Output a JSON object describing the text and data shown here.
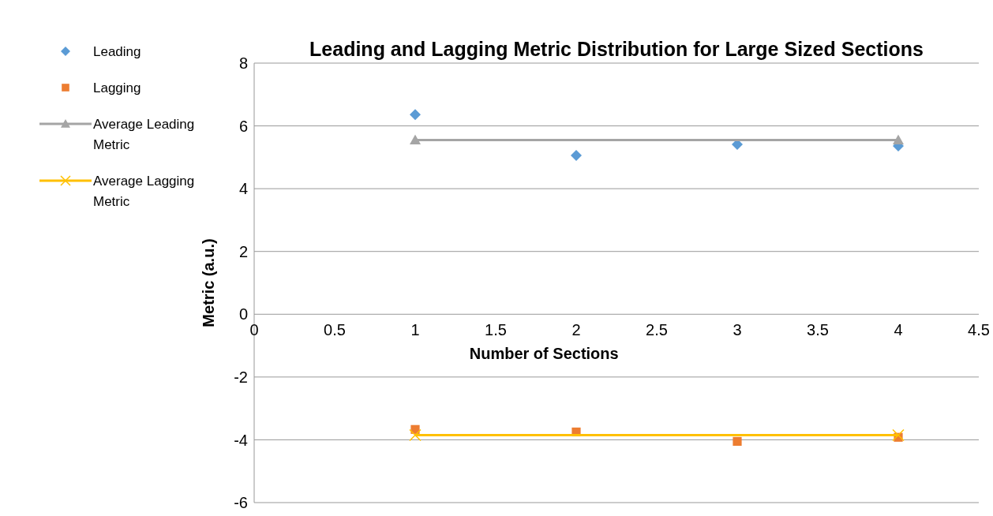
{
  "chart_data": {
    "type": "scatter",
    "title": "Leading and Lagging Metric Distribution for Large Sized Sections",
    "xlabel": "Number of Sections",
    "ylabel": "Metric (a.u.)",
    "xlim": [
      0,
      4.5
    ],
    "xticks": [
      0,
      0.5,
      1,
      1.5,
      2,
      2.5,
      3,
      3.5,
      4,
      4.5
    ],
    "ylim": [
      -6,
      8
    ],
    "yticks": [
      -6,
      -4,
      -2,
      0,
      2,
      4,
      6,
      8
    ],
    "grid": "y",
    "legend": "left",
    "series": [
      {
        "name": "Leading",
        "marker": "diamond",
        "color": "#5b9bd5",
        "x": [
          1,
          2,
          3,
          4
        ],
        "values": [
          6.36,
          5.06,
          5.41,
          5.36
        ]
      },
      {
        "name": "Lagging",
        "marker": "square",
        "color": "#ed7d31",
        "x": [
          1,
          2,
          3,
          4
        ],
        "values": [
          -3.67,
          -3.75,
          -4.05,
          -3.92
        ]
      },
      {
        "name": "Average Leading Metric",
        "type": "line",
        "marker": "triangle",
        "color": "#a5a5a5",
        "x": [
          1,
          4
        ],
        "values": [
          5.55,
          5.55
        ]
      },
      {
        "name": "Average Lagging Metric",
        "type": "line",
        "marker": "cross",
        "color": "#ffc000",
        "x": [
          1,
          4
        ],
        "values": [
          -3.85,
          -3.85
        ]
      }
    ]
  }
}
